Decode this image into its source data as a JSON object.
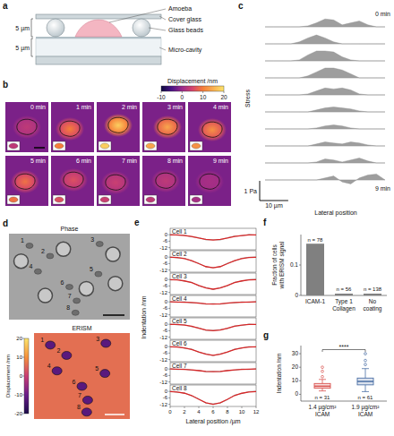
{
  "figure": {
    "a": {
      "label": "a",
      "texts": {
        "amoeba": "Amoeba",
        "cover_glass": "Cover glass",
        "glass_beads": "Glass beads",
        "micro_cavity": "Micro-cavity",
        "gap_top": "5 µm",
        "gap_bottom": "5 µm"
      }
    },
    "b": {
      "label": "b",
      "colorbar": {
        "label": "Displacement /nm",
        "range": [
          -10,
          20
        ],
        "ticks": [
          -10,
          0,
          10,
          20
        ]
      },
      "frames": [
        {
          "time": "0 min",
          "peak": 3
        },
        {
          "time": "1 min",
          "peak": 10
        },
        {
          "time": "2 min",
          "peak": 18
        },
        {
          "time": "3 min",
          "peak": 14
        },
        {
          "time": "4 min",
          "peak": 12
        },
        {
          "time": "5 min",
          "peak": 9
        },
        {
          "time": "6 min",
          "peak": 6
        },
        {
          "time": "7 min",
          "peak": 4
        },
        {
          "time": "8 min",
          "peak": 3
        },
        {
          "time": "9 min",
          "peak": 1
        }
      ]
    },
    "c": {
      "label": "c",
      "y_label": "Stress",
      "x_label": "Lateral position",
      "scale_x": {
        "value": 10,
        "label": "10 µm"
      },
      "scale_y": {
        "value": 1,
        "label": "1 Pa"
      },
      "x": [
        0,
        3,
        6,
        9,
        12,
        15,
        18,
        21,
        24,
        27,
        30,
        33,
        36,
        39,
        42
      ],
      "profiles": [
        {
          "time": "0 min",
          "values": [
            0,
            0,
            0,
            0,
            0,
            0.05,
            0.2,
            0.4,
            0.35,
            0.1,
            0.2,
            0.3,
            0.1,
            0,
            0
          ]
        },
        {
          "values": [
            0,
            0,
            0,
            0,
            0.1,
            0.3,
            0.45,
            0.3,
            0.1,
            0,
            0,
            0,
            0,
            0,
            0
          ]
        },
        {
          "values": [
            0,
            0,
            0,
            0,
            0.05,
            0.3,
            0.5,
            0.5,
            0.45,
            0.2,
            0.05,
            0,
            0,
            0,
            0
          ]
        },
        {
          "values": [
            0,
            0,
            0,
            0,
            0,
            0.1,
            0.3,
            0.5,
            0.5,
            0.4,
            0.2,
            0,
            0,
            0,
            0
          ]
        },
        {
          "values": [
            0,
            0,
            0,
            0,
            0,
            0.05,
            0.2,
            0.35,
            0.3,
            0.35,
            0.25,
            0.05,
            0,
            0,
            0
          ]
        },
        {
          "values": [
            0,
            0,
            0,
            0,
            0,
            0,
            0.1,
            0.2,
            0.25,
            0.2,
            0.15,
            0.05,
            0,
            0,
            0
          ]
        },
        {
          "values": [
            0,
            0,
            0,
            0,
            0,
            0,
            0.05,
            0.15,
            0.2,
            0.15,
            0.05,
            0,
            0,
            0,
            0
          ]
        },
        {
          "values": [
            0,
            0,
            0,
            0,
            0,
            0,
            0.1,
            0.2,
            0.15,
            0.1,
            0.2,
            0.15,
            0.05,
            0,
            0
          ]
        },
        {
          "values": [
            0,
            0,
            0,
            0,
            0,
            0,
            0.05,
            0.2,
            0.15,
            0.05,
            0.15,
            0.25,
            0.1,
            0,
            0
          ]
        },
        {
          "time": "9 min",
          "values": [
            0,
            0,
            0,
            0,
            0,
            0,
            0,
            0.1,
            0.2,
            -0.1,
            -0.2,
            0.1,
            0.25,
            0.3,
            0
          ]
        }
      ]
    },
    "d": {
      "label": "d",
      "phase_title": "Phase",
      "erism_title": "ERISM",
      "cells": [
        "1",
        "2",
        "3",
        "4",
        "5",
        "6",
        "7",
        "8"
      ],
      "colorbar": {
        "label": "Displacement /nm",
        "range": [
          -20,
          20
        ],
        "ticks": [
          -20,
          -10,
          0,
          10,
          20
        ]
      }
    }
  },
  "chart_data": [
    {
      "type": "line",
      "panel_label": "e",
      "x_label": "Lateral position /µm",
      "y_label": "Indentation /nm",
      "x": [
        0,
        1,
        2,
        3,
        4,
        5,
        6,
        7,
        8,
        9,
        10,
        11,
        12
      ],
      "xlim": [
        0,
        12
      ],
      "xticks": [
        0,
        2,
        4,
        6,
        8,
        10,
        12
      ],
      "ylim": [
        -14,
        6
      ],
      "yticks": [
        -12,
        -6,
        0
      ],
      "subplots": [
        {
          "title": "Cell 1",
          "series": [
            {
              "color": "#9a9a9a",
              "values": [
                0.4,
                -0.5,
                -0.3,
                -2.0,
                -2.7,
                -4.8,
                -4.6,
                -4.9,
                -2.8,
                -1.2,
                -1.0,
                0.3,
                -0.4
              ]
            },
            {
              "color": "#d62728",
              "values": [
                -0.1,
                -0.2,
                -0.7,
                -1.6,
                -3.1,
                -4.4,
                -5,
                -4.4,
                -3.1,
                -1.6,
                -0.7,
                -0.2,
                -0.1
              ]
            }
          ]
        },
        {
          "title": "Cell 2",
          "series": [
            {
              "color": "#9a9a9a",
              "values": [
                0.3,
                -0.8,
                -1.0,
                -3.6,
                -5.7,
                -9.3,
                -9.6,
                -9.1,
                -5.6,
                -3.6,
                -1.0,
                -0.1,
                0.2
              ]
            },
            {
              "color": "#d62728",
              "values": [
                -0.1,
                -0.4,
                -1.4,
                -3.2,
                -6.1,
                -8.8,
                -10,
                -8.8,
                -6.1,
                -3.2,
                -1.4,
                -0.4,
                -0.1
              ]
            }
          ]
        },
        {
          "title": "Cell 3",
          "series": [
            {
              "color": "#9a9a9a",
              "values": [
                -0.5,
                0.1,
                -1.7,
                -2.5,
                -6.0,
                -7.5,
                -9.4,
                -7.6,
                -5.9,
                -2.5,
                -1.6,
                0.0,
                0.3
              ]
            },
            {
              "color": "#d62728",
              "values": [
                -0.1,
                -0.4,
                -1.3,
                -2.9,
                -5.5,
                -7.9,
                -9,
                -7.9,
                -5.5,
                -2.9,
                -1.3,
                -0.4,
                -0.1
              ]
            }
          ]
        },
        {
          "title": "Cell 4",
          "series": [
            {
              "color": "#9a9a9a",
              "values": [
                0.4,
                -0.4,
                0.2,
                -1.0,
                -0.8,
                -2.2,
                -1.6,
                -2.2,
                -0.9,
                -1.0,
                0.1,
                -0.5,
                0.3
              ]
            },
            {
              "color": "#d62728",
              "values": [
                0,
                -0.1,
                -0.3,
                -0.6,
                -1.2,
                -1.8,
                -2,
                -1.8,
                -1.2,
                -0.6,
                -0.3,
                -0.1,
                0
              ]
            }
          ]
        },
        {
          "title": "Cell 5",
          "series": [
            {
              "color": "#9a9a9a",
              "values": [
                0.3,
                -0.6,
                -0.4,
                -2.3,
                -3.3,
                -5.7,
                -5.6,
                -5.0,
                -4.1,
                -1.5,
                -1.2,
                0.2,
                -0.3
              ]
            },
            {
              "color": "#d62728",
              "values": [
                -0.1,
                -0.2,
                -0.8,
                -1.9,
                -3.7,
                -5.3,
                -6,
                -5.3,
                -3.7,
                -1.9,
                -0.8,
                -0.2,
                -0.1
              ]
            }
          ]
        },
        {
          "title": "Cell 6",
          "series": [
            {
              "color": "#9a9a9a",
              "values": [
                -0.4,
                0.2,
                -1.5,
                -2.2,
                -5.3,
                -6.6,
                -8.4,
                -6.7,
                -5.2,
                -2.2,
                -1.4,
                0.1,
                -0.5
              ]
            },
            {
              "color": "#d62728",
              "values": [
                -0.1,
                -0.3,
                -1.1,
                -2.6,
                -4.9,
                -7,
                -8,
                -7,
                -4.9,
                -2.6,
                -1.1,
                -0.3,
                -0.1
              ]
            }
          ]
        },
        {
          "title": "Cell 7",
          "series": [
            {
              "color": "#9a9a9a",
              "values": [
                0.4,
                -0.5,
                0.0,
                -1.2,
                -1.1,
                -2.6,
                -2.1,
                -2.5,
                -1.1,
                -1.2,
                0.0,
                -0.5,
                0.3
              ]
            },
            {
              "color": "#d62728",
              "values": [
                0,
                -0.1,
                -0.4,
                -0.8,
                -1.5,
                -2.2,
                -2.5,
                -2.2,
                -1.5,
                -0.8,
                -0.4,
                -0.1,
                0
              ]
            }
          ]
        },
        {
          "title": "Cell 8",
          "series": [
            {
              "color": "#9a9a9a",
              "values": [
                0.3,
                -0.9,
                -1.3,
                -4.2,
                -6.9,
                -11.0,
                -11.6,
                -10.9,
                -7.7,
                -3.4,
                -2.1,
                -0.1,
                0.2
              ]
            },
            {
              "color": "#d62728",
              "values": [
                -0.1,
                -0.5,
                -1.7,
                -3.8,
                -7.3,
                -10.6,
                -12,
                -10.6,
                -7.3,
                -3.8,
                -1.7,
                -0.5,
                -0.1
              ]
            }
          ]
        }
      ]
    },
    {
      "type": "bar",
      "panel_label": "f",
      "y_label": "Fraction of cells with ERISM signal",
      "categories": [
        "ICAM-1",
        "Type 1 Collagen",
        "No coating"
      ],
      "values": [
        0.17,
        0.006,
        0.006
      ],
      "annotations": [
        "n = 78",
        "n = 56",
        "n = 138"
      ],
      "color": "#808080",
      "ylim": [
        0,
        0.2
      ],
      "yticks": [
        0,
        0.1
      ]
    },
    {
      "type": "box",
      "panel_label": "g",
      "y_label": "Indentation /nm",
      "categories": [
        "1.4 µg/cm² ICAM",
        "1.9 µg/cm² ICAM"
      ],
      "boxes": [
        {
          "min": 2.5,
          "q1": 4.5,
          "median": 6,
          "q3": 8,
          "max": 11,
          "outliers": [
            13,
            17,
            20
          ]
        },
        {
          "min": 2,
          "q1": 7,
          "median": 9.5,
          "q3": 12,
          "max": 19,
          "outliers": [
            22,
            25,
            30
          ]
        }
      ],
      "annotations": [
        "n = 31",
        "n = 61"
      ],
      "significance": "****",
      "colors": [
        "#d9534f",
        "#4a6fa5"
      ],
      "ylim": [
        -5,
        36
      ],
      "yticks": [
        0,
        10,
        20,
        30
      ]
    }
  ]
}
